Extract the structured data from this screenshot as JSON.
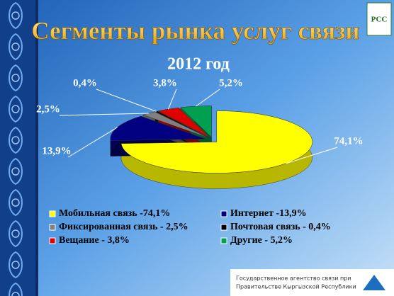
{
  "chart_data": {
    "type": "pie",
    "title": "Сегменты рынка услуг связи",
    "subtitle": "2012 год",
    "categories": [
      "Мобильная связь  -74,1%",
      "Интернет -13,9%",
      "Фиксированная связь - 2,5%",
      "Почтовая связь - 0,4%",
      "Вещание - 3,8%",
      "Другие - 5,2%"
    ],
    "values": [
      74.1,
      13.9,
      2.5,
      0.4,
      3.8,
      5.2
    ],
    "value_labels": [
      "74,1%",
      "13,9%",
      "2,5%",
      "0,4%",
      "3,8%",
      "5,2%"
    ],
    "colors": [
      "#ffff00",
      "#000080",
      "#808080",
      "#000000",
      "#e00000",
      "#00a050"
    ]
  },
  "footer": {
    "line1": "Государственное агентство связи при",
    "line2": "Правительстве  Кыргызской Республики",
    "logo": "РСС"
  }
}
